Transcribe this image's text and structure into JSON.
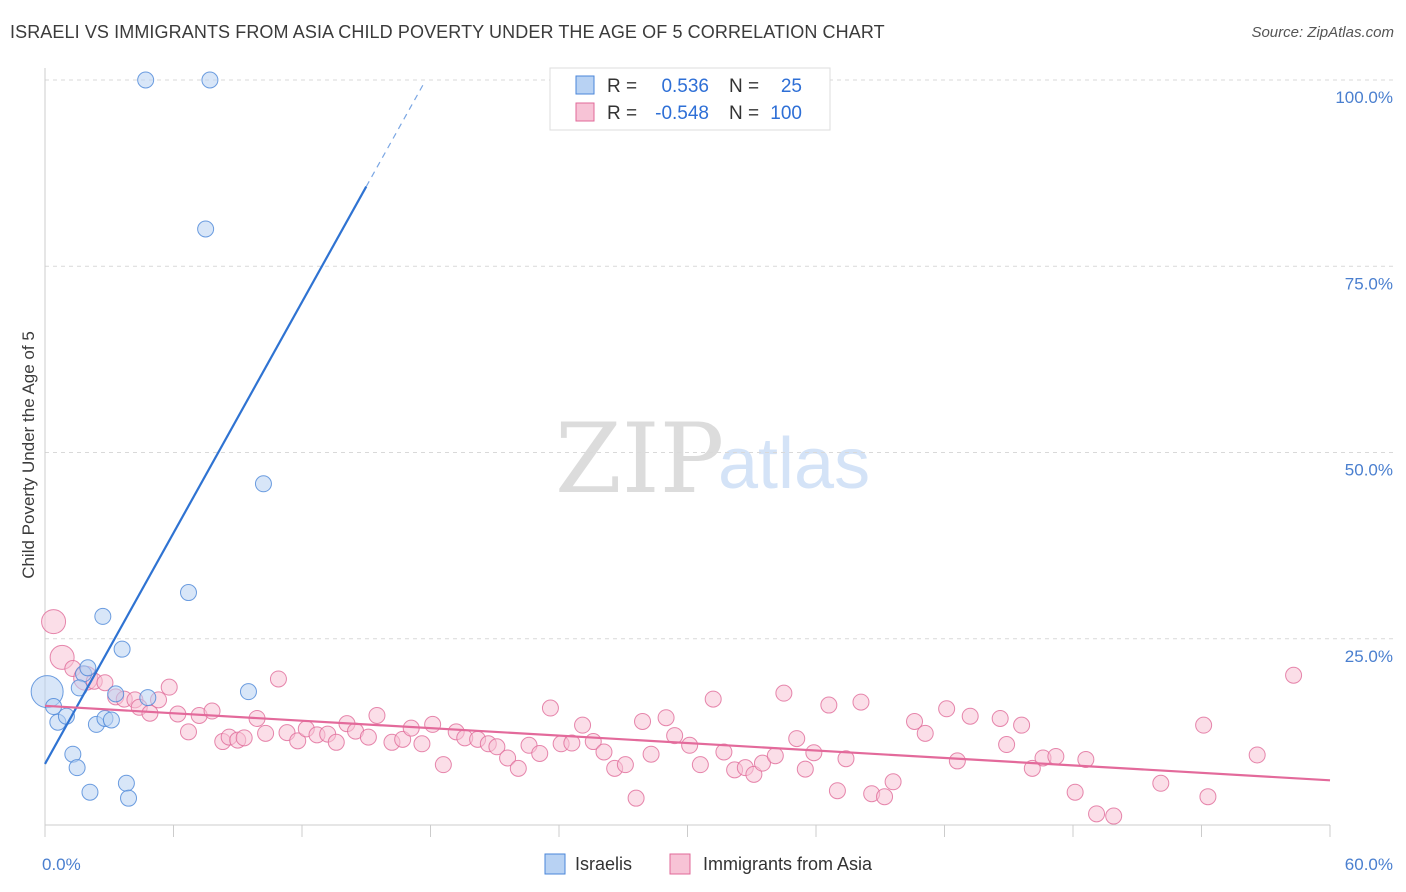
{
  "title": "ISRAELI VS IMMIGRANTS FROM ASIA CHILD POVERTY UNDER THE AGE OF 5 CORRELATION CHART",
  "source": "Source: ZipAtlas.com",
  "watermark": {
    "part1": "ZIP",
    "part2": "atlas"
  },
  "colors": {
    "blue": "#4a86d8",
    "blue_fill": "#b8d2f3",
    "pink": "#e06a98",
    "pink_fill": "#f7c3d6",
    "tick_label": "#4a7fcf",
    "grid": "#d9d9d9"
  },
  "legend": {
    "rows": [
      {
        "r_label": "R =",
        "r_value": "0.536",
        "n_label": "N =",
        "n_value": "25",
        "series": "Israelis"
      },
      {
        "r_label": "R =",
        "r_value": "-0.548",
        "n_label": "N =",
        "n_value": "100",
        "series": "Immigrants from Asia"
      }
    ]
  },
  "chart_data": {
    "type": "scatter",
    "title": "ISRAELI VS IMMIGRANTS FROM ASIA CHILD POVERTY UNDER THE AGE OF 5 CORRELATION CHART",
    "xlabel": "",
    "ylabel": "Child Poverty Under the Age of 5",
    "xlim": [
      0,
      60
    ],
    "ylim": [
      0,
      100
    ],
    "x_tick_labels": [
      {
        "value": 0,
        "label": "0.0%"
      },
      {
        "value": 60,
        "label": "60.0%"
      }
    ],
    "y_tick_labels": [
      {
        "value": 25,
        "label": "25.0%"
      },
      {
        "value": 50,
        "label": "50.0%"
      },
      {
        "value": 75,
        "label": "75.0%"
      },
      {
        "value": 100,
        "label": "100.0%"
      }
    ],
    "series": [
      {
        "name": "Israelis",
        "color": "blue",
        "points": [
          [
            0.1,
            17.9,
            3
          ],
          [
            0.4,
            15.9,
            1
          ],
          [
            0.6,
            13.8,
            1
          ],
          [
            1.0,
            14.6,
            1
          ],
          [
            1.3,
            9.5,
            1
          ],
          [
            1.5,
            7.7,
            1
          ],
          [
            1.8,
            20.3,
            1
          ],
          [
            2.0,
            21.1,
            1
          ],
          [
            2.1,
            4.4,
            1
          ],
          [
            2.4,
            13.5,
            1
          ],
          [
            2.7,
            28.0,
            1
          ],
          [
            2.8,
            14.3,
            1
          ],
          [
            3.1,
            14.1,
            1
          ],
          [
            3.3,
            17.6,
            1
          ],
          [
            3.6,
            23.6,
            1
          ],
          [
            3.8,
            5.6,
            1
          ],
          [
            3.9,
            3.6,
            1
          ],
          [
            4.7,
            100.0,
            1
          ],
          [
            4.8,
            17.1,
            1
          ],
          [
            6.7,
            31.2,
            1
          ],
          [
            7.5,
            80.0,
            1
          ],
          [
            7.7,
            100.0,
            1
          ],
          [
            9.5,
            17.9,
            1
          ],
          [
            10.2,
            45.8,
            1
          ],
          [
            1.6,
            18.4,
            1
          ]
        ],
        "trend": {
          "x0": 0,
          "y0": 8.2,
          "x1": 15.0,
          "y1": 85.7,
          "dash_x1": 17.7,
          "dash_y1": 99.6
        }
      },
      {
        "name": "Immigrants from Asia",
        "color": "pink",
        "points": [
          [
            0.4,
            27.3,
            2
          ],
          [
            0.8,
            22.5,
            2
          ],
          [
            1.3,
            21.0,
            1
          ],
          [
            1.9,
            19.7,
            2
          ],
          [
            2.3,
            19.3,
            1
          ],
          [
            2.8,
            19.1,
            1
          ],
          [
            3.3,
            17.2,
            1
          ],
          [
            3.7,
            16.9,
            1
          ],
          [
            4.2,
            16.8,
            1
          ],
          [
            4.4,
            15.8,
            1
          ],
          [
            4.9,
            15.0,
            1
          ],
          [
            5.3,
            16.8,
            1
          ],
          [
            5.8,
            18.5,
            1
          ],
          [
            6.2,
            14.9,
            1
          ],
          [
            6.7,
            12.5,
            1
          ],
          [
            7.2,
            14.7,
            1
          ],
          [
            7.8,
            15.3,
            1
          ],
          [
            8.3,
            11.2,
            1
          ],
          [
            8.6,
            11.8,
            1
          ],
          [
            9.0,
            11.4,
            1
          ],
          [
            9.3,
            11.7,
            1
          ],
          [
            9.9,
            14.3,
            1
          ],
          [
            10.3,
            12.3,
            1
          ],
          [
            10.9,
            19.6,
            1
          ],
          [
            11.3,
            12.4,
            1
          ],
          [
            11.8,
            11.3,
            1
          ],
          [
            12.2,
            12.9,
            1
          ],
          [
            12.7,
            12.1,
            1
          ],
          [
            13.2,
            12.2,
            1
          ],
          [
            13.6,
            11.1,
            1
          ],
          [
            14.1,
            13.6,
            1
          ],
          [
            14.5,
            12.6,
            1
          ],
          [
            15.1,
            11.8,
            1
          ],
          [
            15.5,
            14.7,
            1
          ],
          [
            16.2,
            11.1,
            1
          ],
          [
            16.7,
            11.5,
            1
          ],
          [
            17.1,
            13.0,
            1
          ],
          [
            17.6,
            10.9,
            1
          ],
          [
            18.1,
            13.5,
            1
          ],
          [
            18.6,
            8.1,
            1
          ],
          [
            19.2,
            12.5,
            1
          ],
          [
            19.6,
            11.7,
            1
          ],
          [
            20.2,
            11.5,
            1
          ],
          [
            20.7,
            10.9,
            1
          ],
          [
            21.1,
            10.5,
            1
          ],
          [
            21.6,
            9.0,
            1
          ],
          [
            22.1,
            7.6,
            1
          ],
          [
            22.6,
            10.7,
            1
          ],
          [
            23.1,
            9.6,
            1
          ],
          [
            23.6,
            15.7,
            1
          ],
          [
            24.1,
            10.9,
            1
          ],
          [
            24.6,
            11.0,
            1
          ],
          [
            25.1,
            13.4,
            1
          ],
          [
            25.6,
            11.2,
            1
          ],
          [
            26.1,
            9.8,
            1
          ],
          [
            26.6,
            7.6,
            1
          ],
          [
            27.1,
            8.1,
            1
          ],
          [
            27.6,
            3.6,
            1
          ],
          [
            27.9,
            13.9,
            1
          ],
          [
            28.3,
            9.5,
            1
          ],
          [
            29.0,
            14.4,
            1
          ],
          [
            29.4,
            12.0,
            1
          ],
          [
            30.1,
            10.7,
            1
          ],
          [
            30.6,
            8.1,
            1
          ],
          [
            31.2,
            16.9,
            1
          ],
          [
            31.7,
            9.8,
            1
          ],
          [
            32.2,
            7.4,
            1
          ],
          [
            32.7,
            7.7,
            1
          ],
          [
            33.1,
            6.8,
            1
          ],
          [
            33.5,
            8.3,
            1
          ],
          [
            34.1,
            9.3,
            1
          ],
          [
            34.5,
            17.7,
            1
          ],
          [
            35.1,
            11.6,
            1
          ],
          [
            35.5,
            7.5,
            1
          ],
          [
            35.9,
            9.7,
            1
          ],
          [
            36.6,
            16.1,
            1
          ],
          [
            37.0,
            4.6,
            1
          ],
          [
            37.4,
            8.9,
            1
          ],
          [
            38.1,
            16.5,
            1
          ],
          [
            38.6,
            4.2,
            1
          ],
          [
            39.2,
            3.8,
            1
          ],
          [
            39.6,
            5.8,
            1
          ],
          [
            40.6,
            13.9,
            1
          ],
          [
            41.1,
            12.3,
            1
          ],
          [
            42.1,
            15.6,
            1
          ],
          [
            42.6,
            8.6,
            1
          ],
          [
            43.2,
            14.6,
            1
          ],
          [
            44.6,
            14.3,
            1
          ],
          [
            44.9,
            10.8,
            1
          ],
          [
            45.6,
            13.4,
            1
          ],
          [
            46.1,
            7.6,
            1
          ],
          [
            46.6,
            9.0,
            1
          ],
          [
            47.2,
            9.2,
            1
          ],
          [
            48.1,
            4.4,
            1
          ],
          [
            48.6,
            8.8,
            1
          ],
          [
            49.1,
            1.5,
            1
          ],
          [
            49.9,
            1.2,
            1
          ],
          [
            52.1,
            5.6,
            1
          ],
          [
            54.1,
            13.4,
            1
          ],
          [
            54.3,
            3.8,
            1
          ],
          [
            56.6,
            9.4,
            1
          ],
          [
            58.3,
            20.1,
            1
          ]
        ],
        "trend": {
          "x0": 0,
          "y0": 16.0,
          "x1": 60,
          "y1": 6.0
        }
      }
    ],
    "legend_position": "top-center",
    "grid": true
  },
  "bottom_legend": [
    {
      "label": "Israelis",
      "color": "blue"
    },
    {
      "label": "Immigrants from Asia",
      "color": "pink"
    }
  ]
}
